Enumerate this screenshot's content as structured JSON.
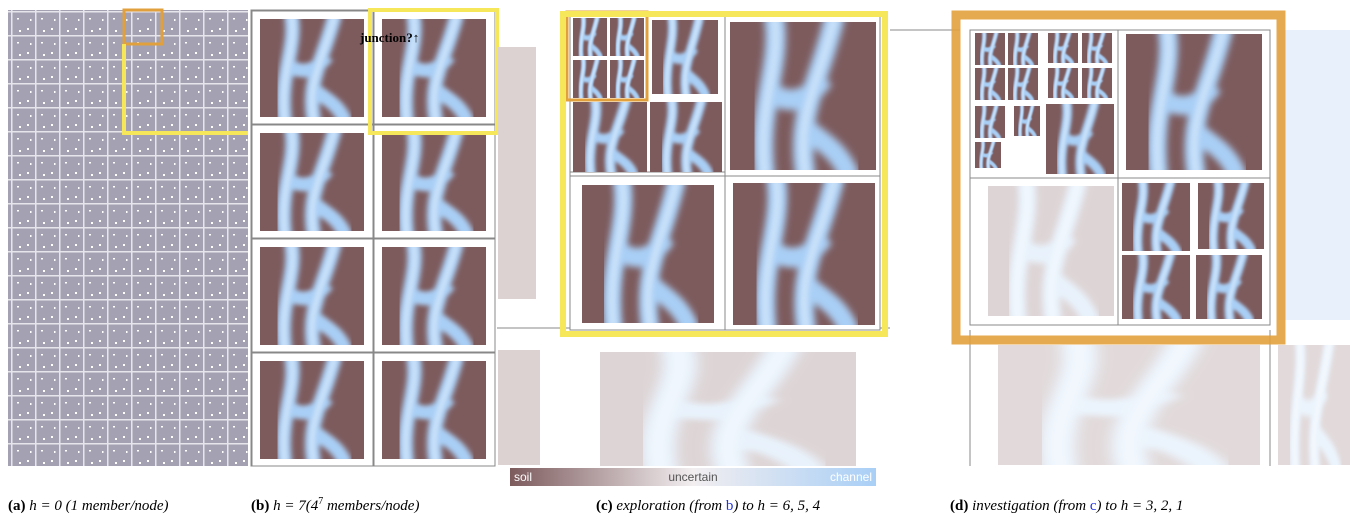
{
  "annotation": "junction?↑",
  "legend": {
    "low": "soil",
    "mid": "uncertain",
    "high": "channel"
  },
  "captions": [
    {
      "label": "(a)",
      "parts": [
        {
          "text": "h = 0",
          "style": "italic"
        },
        {
          "text": " (1 member/node)",
          "style": "italic"
        }
      ]
    },
    {
      "label": "(b)",
      "parts": [
        {
          "text": "h = 7(4",
          "style": "italic"
        },
        {
          "text": "7",
          "style": "sup"
        },
        {
          "text": " members/node)",
          "style": "italic"
        }
      ]
    },
    {
      "label": "(c)",
      "parts": [
        {
          "text": "exploration (from ",
          "style": "italic"
        },
        {
          "text": "b",
          "style": "link"
        },
        {
          "text": ") to h = 6, 5, 4",
          "style": "italic"
        }
      ]
    },
    {
      "label": "(d)",
      "parts": [
        {
          "text": "investigation (from ",
          "style": "italic"
        },
        {
          "text": "c",
          "style": "link"
        },
        {
          "text": ") to h = 3, 2, 1",
          "style": "italic"
        }
      ]
    }
  ]
}
